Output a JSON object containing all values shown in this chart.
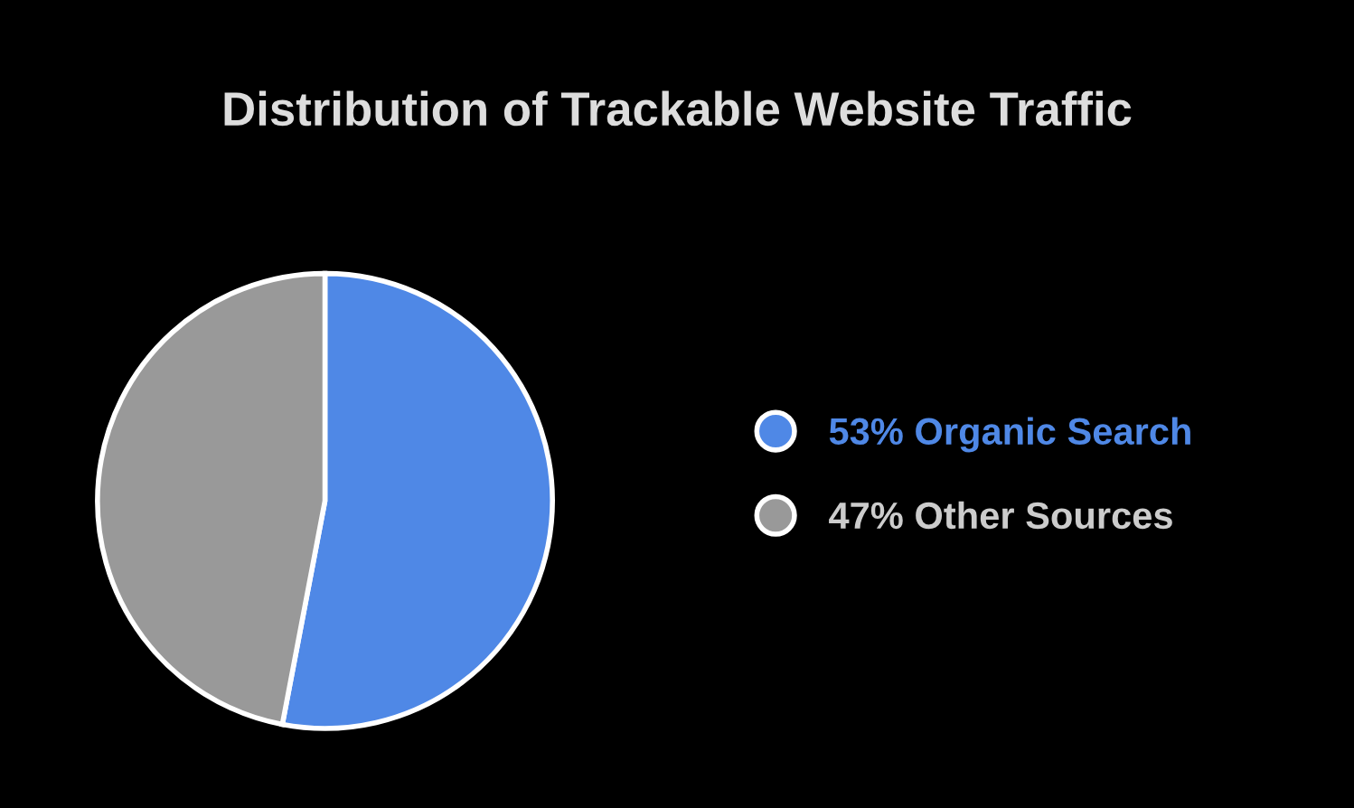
{
  "chart_data": {
    "type": "pie",
    "title": "Distribution of Trackable Website Traffic",
    "categories": [
      "53% Organic Search",
      "47% Other Sources"
    ],
    "values": [
      53,
      47
    ],
    "colors": [
      "#4f88e6",
      "#999999"
    ],
    "legend": "right"
  }
}
